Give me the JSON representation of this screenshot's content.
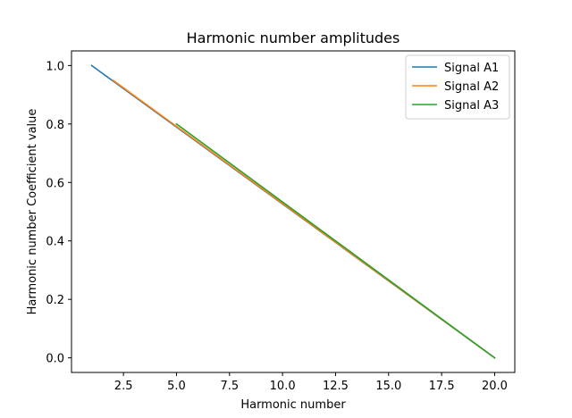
{
  "chart_data": {
    "type": "line",
    "title": "Harmonic number amplitudes",
    "xlabel": "Harmonic number",
    "ylabel": "Harmonic number Coefficient value",
    "xlim": [
      0.05,
      20.95
    ],
    "ylim": [
      -0.05,
      1.05
    ],
    "xticks": [
      2.5,
      5.0,
      7.5,
      10.0,
      12.5,
      15.0,
      17.5,
      20.0
    ],
    "xtick_labels": [
      "2.5",
      "5.0",
      "7.5",
      "10.0",
      "12.5",
      "15.0",
      "17.5",
      "20.0"
    ],
    "yticks": [
      0.0,
      0.2,
      0.4,
      0.6,
      0.8,
      1.0
    ],
    "ytick_labels": [
      "0.0",
      "0.2",
      "0.4",
      "0.6",
      "0.8",
      "1.0"
    ],
    "grid": false,
    "legend_position": "top-right",
    "series": [
      {
        "name": "Signal A1",
        "color": "#1f77b4",
        "x": [
          1,
          20
        ],
        "y": [
          1.0,
          0.0
        ]
      },
      {
        "name": "Signal A2",
        "color": "#ff7f0e",
        "x": [
          2,
          20
        ],
        "y": [
          0.95,
          0.0
        ]
      },
      {
        "name": "Signal A3",
        "color": "#2ca02c",
        "x": [
          5,
          20
        ],
        "y": [
          0.8,
          0.0
        ]
      }
    ]
  }
}
